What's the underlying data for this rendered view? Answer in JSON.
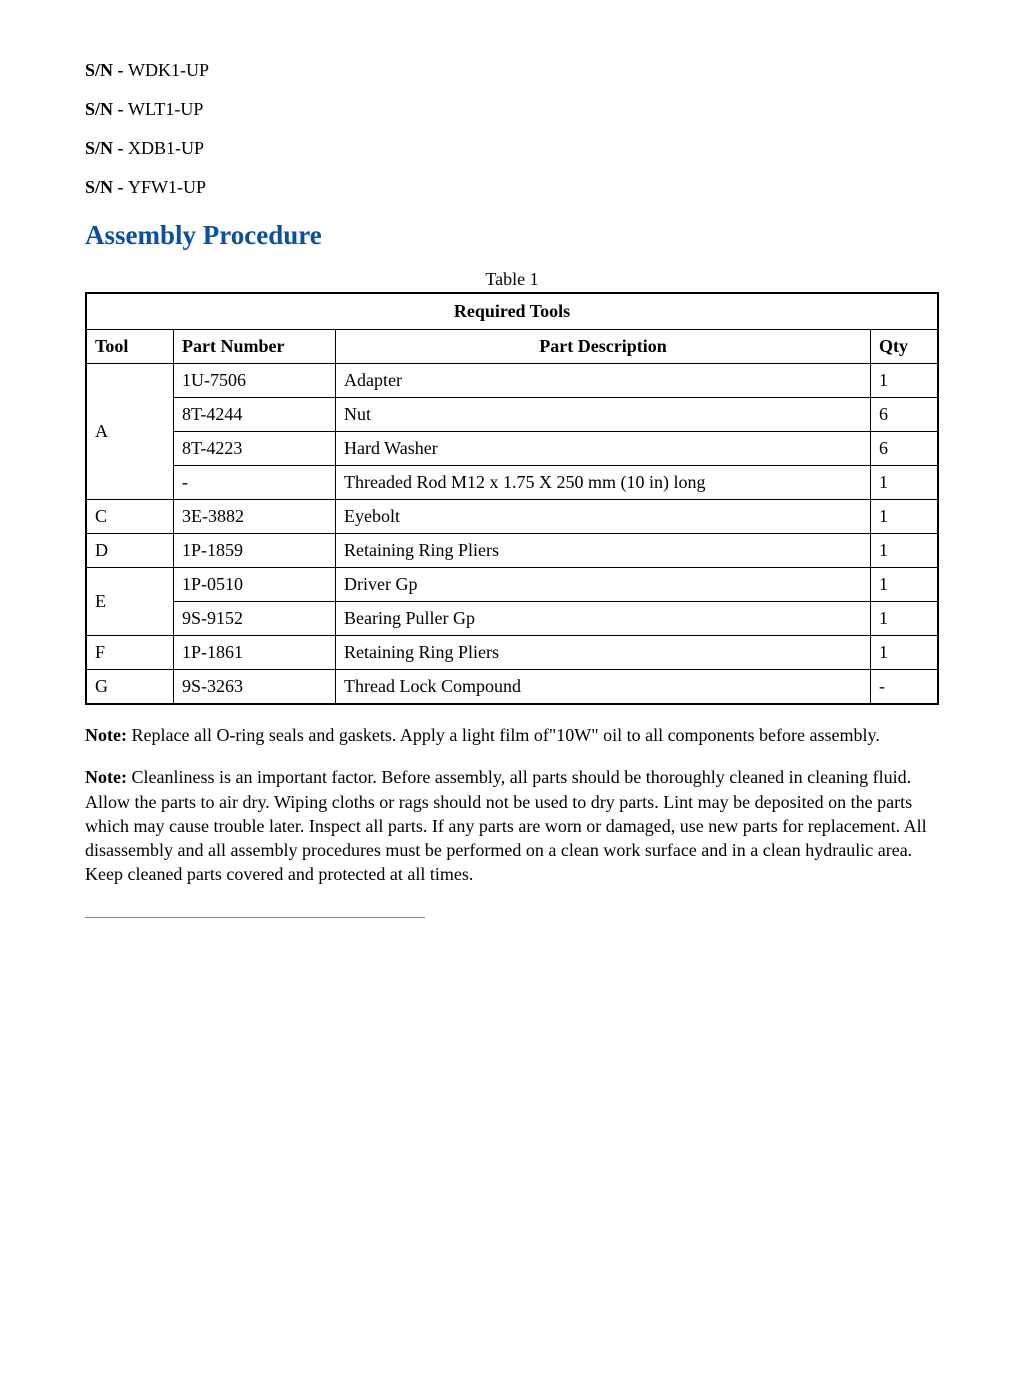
{
  "serial_numbers": {
    "label": "S/N - ",
    "items": [
      "WDK1-UP",
      "WLT1-UP",
      "XDB1-UP",
      "YFW1-UP"
    ]
  },
  "section_heading": "Assembly Procedure",
  "table": {
    "caption": "Table 1",
    "title": "Required Tools",
    "columns": {
      "tool": "Tool",
      "part_number": "Part Number",
      "part_description": "Part Description",
      "qty": "Qty"
    },
    "groups": [
      {
        "tool": "A",
        "rows": [
          {
            "pn": "1U-7506",
            "desc": "Adapter",
            "qty": "1"
          },
          {
            "pn": "8T-4244",
            "desc": "Nut",
            "qty": "6"
          },
          {
            "pn": "8T-4223",
            "desc": "Hard Washer",
            "qty": "6"
          },
          {
            "pn": "-",
            "desc": "Threaded Rod M12 x 1.75 X 250 mm (10 in) long",
            "qty": "1"
          }
        ]
      },
      {
        "tool": "C",
        "rows": [
          {
            "pn": "3E-3882",
            "desc": "Eyebolt",
            "qty": "1"
          }
        ]
      },
      {
        "tool": "D",
        "rows": [
          {
            "pn": "1P-1859",
            "desc": "Retaining Ring Pliers",
            "qty": "1"
          }
        ]
      },
      {
        "tool": "E",
        "rows": [
          {
            "pn": "1P-0510",
            "desc": "Driver Gp",
            "qty": "1"
          },
          {
            "pn": "9S-9152",
            "desc": "Bearing Puller Gp",
            "qty": "1"
          }
        ]
      },
      {
        "tool": "F",
        "rows": [
          {
            "pn": "1P-1861",
            "desc": "Retaining Ring Pliers",
            "qty": "1"
          }
        ]
      },
      {
        "tool": "G",
        "rows": [
          {
            "pn": "9S-3263",
            "desc": "Thread Lock Compound",
            "qty": "-"
          }
        ]
      }
    ]
  },
  "notes": {
    "label": "Note:",
    "items": [
      "Replace all O-ring seals and gaskets. Apply a light film of\"10W\" oil to all components before assembly.",
      "Cleanliness is an important factor. Before assembly, all parts should be thoroughly cleaned in cleaning fluid. Allow the parts to air dry. Wiping cloths or rags should not be used to dry parts. Lint may be deposited on the parts which may cause trouble later. Inspect all parts. If any parts are worn or damaged, use new parts for replacement. All disassembly and all assembly procedures must be performed on a clean work surface and in a clean hydraulic area. Keep cleaned parts covered and protected at all times."
    ]
  }
}
